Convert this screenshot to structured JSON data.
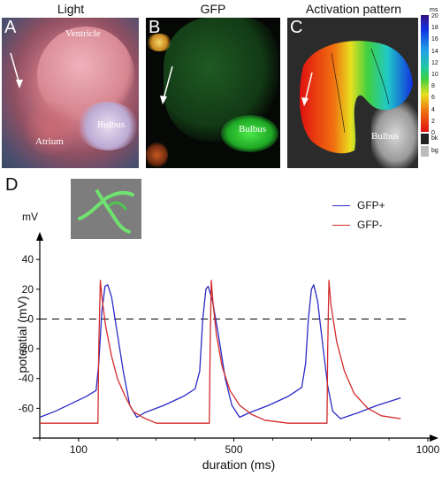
{
  "panels": {
    "a": {
      "letter": "A",
      "title": "Light",
      "labels": {
        "ventricle": "Ventricle",
        "atrium": "Atrium",
        "bulbus": "Bulbus"
      }
    },
    "b": {
      "letter": "B",
      "title": "GFP",
      "labels": {
        "bulbus": "Bulbus"
      }
    },
    "c": {
      "letter": "C",
      "title": "Activation pattern",
      "labels": {
        "bulbus": "Bulbus"
      },
      "colorbar": {
        "unit": "ms",
        "ticks": [
          "20",
          "18",
          "16",
          "14",
          "12",
          "10",
          "8",
          "6",
          "4",
          "2",
          "0",
          "bk",
          "bg"
        ]
      }
    },
    "d": {
      "letter": "D"
    }
  },
  "colors": {
    "gfp_plus": "#2a2ac8",
    "gfp_minus": "#d42a2a"
  },
  "chart_data": {
    "type": "line",
    "xlabel": "duration (ms)",
    "ylabel": "potential (mV)",
    "yunit": "mV",
    "x_ticks": [
      "100",
      "500",
      "1000"
    ],
    "y_ticks": [
      "40",
      "20",
      "0",
      "-20",
      "-40",
      "-60"
    ],
    "xlim": [
      0,
      1000
    ],
    "ylim": [
      -80,
      55
    ],
    "reference_line": {
      "y": 0,
      "style": "dashed"
    },
    "legend_position": "top-right",
    "series": [
      {
        "name": "GFP+",
        "color": "#2a2ac8",
        "points": [
          [
            0,
            -66
          ],
          [
            40,
            -62
          ],
          [
            80,
            -57
          ],
          [
            120,
            -52
          ],
          [
            145,
            -48
          ],
          [
            152,
            -30
          ],
          [
            160,
            5
          ],
          [
            168,
            22
          ],
          [
            175,
            23
          ],
          [
            185,
            15
          ],
          [
            200,
            -10
          ],
          [
            215,
            -35
          ],
          [
            232,
            -58
          ],
          [
            250,
            -66
          ],
          [
            270,
            -63
          ],
          [
            320,
            -58
          ],
          [
            370,
            -52
          ],
          [
            400,
            -47
          ],
          [
            412,
            -35
          ],
          [
            420,
            0
          ],
          [
            428,
            20
          ],
          [
            434,
            22
          ],
          [
            445,
            12
          ],
          [
            460,
            -10
          ],
          [
            478,
            -40
          ],
          [
            495,
            -58
          ],
          [
            515,
            -66
          ],
          [
            540,
            -63
          ],
          [
            590,
            -58
          ],
          [
            640,
            -52
          ],
          [
            675,
            -46
          ],
          [
            685,
            -30
          ],
          [
            692,
            0
          ],
          [
            700,
            20
          ],
          [
            706,
            23
          ],
          [
            716,
            12
          ],
          [
            728,
            -15
          ],
          [
            742,
            -45
          ],
          [
            755,
            -62
          ],
          [
            775,
            -67
          ],
          [
            820,
            -63
          ],
          [
            870,
            -58
          ],
          [
            930,
            -53
          ]
        ]
      },
      {
        "name": "GFP-",
        "color": "#d42a2a",
        "points": [
          [
            0,
            -70
          ],
          [
            60,
            -70
          ],
          [
            150,
            -70
          ],
          [
            152,
            -20
          ],
          [
            156,
            26
          ],
          [
            160,
            15
          ],
          [
            170,
            -5
          ],
          [
            185,
            -25
          ],
          [
            200,
            -40
          ],
          [
            220,
            -52
          ],
          [
            240,
            -62
          ],
          [
            265,
            -66
          ],
          [
            300,
            -70
          ],
          [
            360,
            -70
          ],
          [
            420,
            -70
          ],
          [
            437,
            -70
          ],
          [
            439,
            -20
          ],
          [
            442,
            26
          ],
          [
            446,
            12
          ],
          [
            455,
            -10
          ],
          [
            470,
            -32
          ],
          [
            490,
            -48
          ],
          [
            515,
            -58
          ],
          [
            545,
            -64
          ],
          [
            580,
            -68
          ],
          [
            640,
            -70
          ],
          [
            720,
            -70
          ],
          [
            740,
            -70
          ],
          [
            742,
            -20
          ],
          [
            745,
            26
          ],
          [
            750,
            10
          ],
          [
            765,
            -15
          ],
          [
            785,
            -35
          ],
          [
            810,
            -50
          ],
          [
            845,
            -60
          ],
          [
            880,
            -65
          ],
          [
            930,
            -67
          ]
        ]
      }
    ]
  }
}
